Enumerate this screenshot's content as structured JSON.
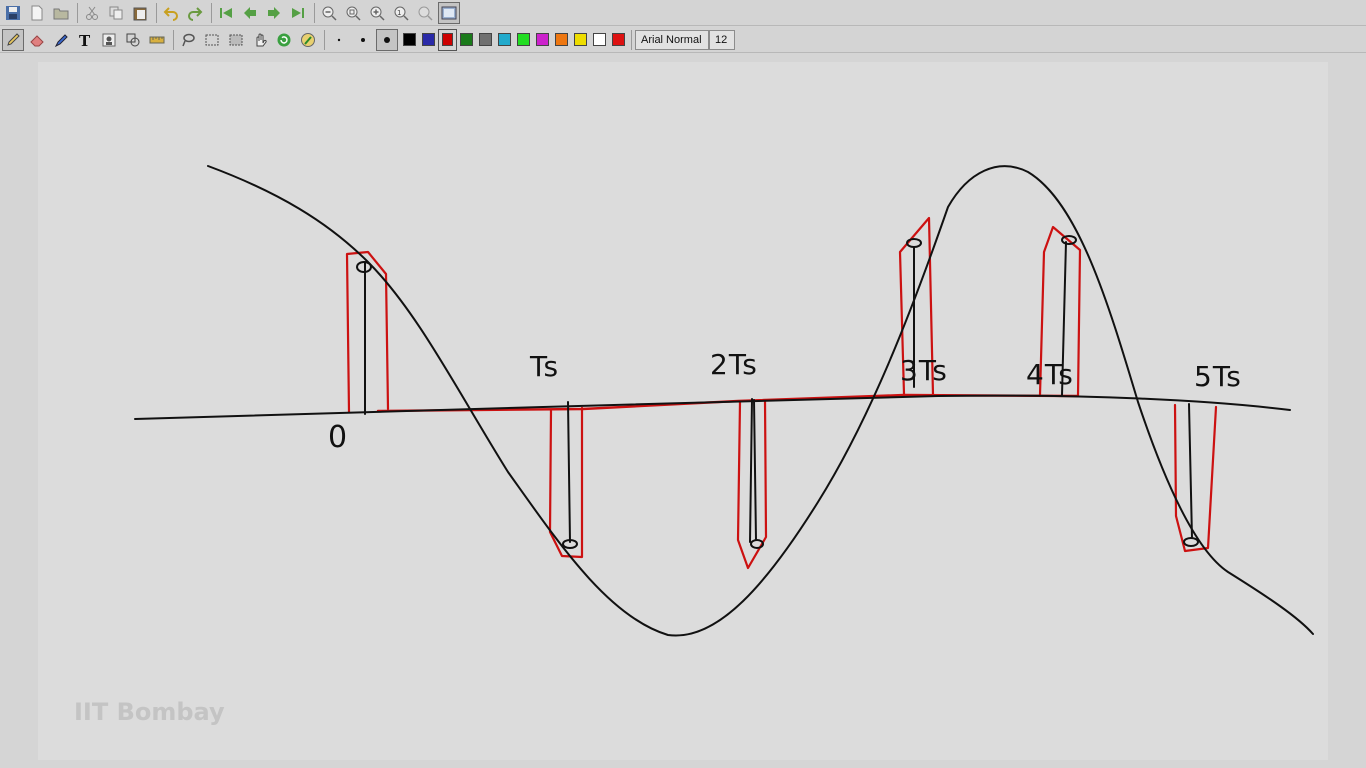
{
  "toolbar_top": {
    "buttons": [
      "save-icon",
      "new-page-icon",
      "open-icon",
      "cut-icon",
      "copy-icon",
      "paste-icon",
      "undo-icon",
      "redo-icon",
      "first-page-icon",
      "prev-page-icon",
      "next-page-icon",
      "last-page-icon",
      "zoom-out-icon",
      "zoom-fit-icon",
      "zoom-in-icon",
      "zoom-actual-icon",
      "zoom-region-icon",
      "fullscreen-icon"
    ]
  },
  "toolbar_tools": {
    "tools": [
      "pen-icon",
      "eraser-icon",
      "highlighter-icon",
      "text-icon",
      "stamp-icon",
      "ruler-icon",
      "shape-icon",
      "lasso-icon",
      "select-rect-icon",
      "select-region-icon",
      "hand-icon",
      "refresh-icon",
      "pen-style-icon"
    ],
    "pen_sizes": [
      "small",
      "medium",
      "large"
    ],
    "colors": [
      "#000000",
      "#2a2aa8",
      "#cc0000",
      "#1a7a1a",
      "#707070",
      "#22aacc",
      "#22dd22",
      "#cc22cc",
      "#ee7711",
      "#eedd00",
      "#ffffff",
      "#dd1111"
    ],
    "selected_color": "#cc0000",
    "font_name": "Arial Normal",
    "font_size": "12"
  },
  "whiteboard": {
    "labels": {
      "zero": "0",
      "ts1": "Ts",
      "ts2": "2Ts",
      "ts3": "3Ts",
      "ts4": "4Ts",
      "ts5": "5Ts"
    },
    "ink_colors": {
      "black": "#111111",
      "red": "#cc1111"
    }
  },
  "watermark": "IIT Bombay"
}
